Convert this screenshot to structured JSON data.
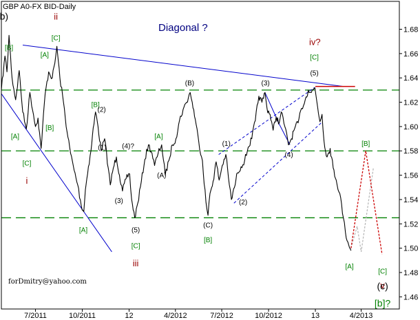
{
  "chart_data": {
    "type": "line",
    "title": "GBP A0-FX BID-Daily",
    "annotation_title": "Diagonal ?",
    "xlabel": "",
    "ylabel": "",
    "ylim": [
      1.45,
      1.695
    ],
    "x_start": "2011-04-25",
    "x_end": "2013-06-15",
    "x_ticks": [
      {
        "date": "2011-07-01",
        "label": "7/2011"
      },
      {
        "date": "2011-10-01",
        "label": "10/2011"
      },
      {
        "date": "2012-01-01",
        "label": "12"
      },
      {
        "date": "2012-04-01",
        "label": "4/2012"
      },
      {
        "date": "2012-07-01",
        "label": "7/2012"
      },
      {
        "date": "2012-10-01",
        "label": "10/2012"
      },
      {
        "date": "2013-01-01",
        "label": "13"
      },
      {
        "date": "2013-04-01",
        "label": "4/2013"
      }
    ],
    "y_ticks": [
      "1.46",
      "1.48",
      "1.50",
      "1.52",
      "1.54",
      "1.56",
      "1.58",
      "1.60",
      "1.62",
      "1.64",
      "1.66",
      "1.68"
    ],
    "grid": false,
    "colors": {
      "price": "#000000",
      "support": "#008000",
      "trend": "#0000cc",
      "resistance": "#cc0000",
      "channel": "#0000cc",
      "forecast_red": "#cc0000",
      "forecast_gray": "#b4b4b4",
      "label_green": "#008000",
      "label_red": "#990000",
      "label_black": "#000000",
      "label_blue": "#000080"
    },
    "series": [
      {
        "values": [
          [
            "2011-04-25",
            1.63
          ],
          [
            "2011-05-02",
            1.658
          ],
          [
            "2011-05-06",
            1.645
          ],
          [
            "2011-05-10",
            1.675
          ],
          [
            "2011-05-16",
            1.64
          ],
          [
            "2011-05-23",
            1.622
          ],
          [
            "2011-05-30",
            1.646
          ],
          [
            "2011-06-06",
            1.612
          ],
          [
            "2011-06-13",
            1.598
          ],
          [
            "2011-06-20",
            1.628
          ],
          [
            "2011-06-27",
            1.61
          ],
          [
            "2011-07-01",
            1.6
          ],
          [
            "2011-07-06",
            1.607
          ],
          [
            "2011-07-12",
            1.582
          ],
          [
            "2011-07-20",
            1.627
          ],
          [
            "2011-07-27",
            1.645
          ],
          [
            "2011-08-03",
            1.64
          ],
          [
            "2011-08-08",
            1.652
          ],
          [
            "2011-08-12",
            1.666
          ],
          [
            "2011-08-18",
            1.64
          ],
          [
            "2011-08-25",
            1.62
          ],
          [
            "2011-09-01",
            1.596
          ],
          [
            "2011-09-08",
            1.578
          ],
          [
            "2011-09-15",
            1.564
          ],
          [
            "2011-09-22",
            1.552
          ],
          [
            "2011-09-29",
            1.535
          ],
          [
            "2011-10-04",
            1.53
          ],
          [
            "2011-10-07",
            1.548
          ],
          [
            "2011-10-13",
            1.567
          ],
          [
            "2011-10-18",
            1.58
          ],
          [
            "2011-10-21",
            1.593
          ],
          [
            "2011-10-27",
            1.612
          ],
          [
            "2011-11-01",
            1.6
          ],
          [
            "2011-11-07",
            1.58
          ],
          [
            "2011-11-14",
            1.59
          ],
          [
            "2011-11-21",
            1.566
          ],
          [
            "2011-11-25",
            1.552
          ],
          [
            "2011-12-01",
            1.566
          ],
          [
            "2011-12-07",
            1.575
          ],
          [
            "2011-12-13",
            1.56
          ],
          [
            "2011-12-19",
            1.547
          ],
          [
            "2011-12-26",
            1.557
          ],
          [
            "2012-01-02",
            1.561
          ],
          [
            "2012-01-06",
            1.54
          ],
          [
            "2012-01-12",
            1.525
          ],
          [
            "2012-01-18",
            1.537
          ],
          [
            "2012-01-25",
            1.555
          ],
          [
            "2012-02-01",
            1.573
          ],
          [
            "2012-02-08",
            1.585
          ],
          [
            "2012-02-15",
            1.578
          ],
          [
            "2012-02-20",
            1.568
          ],
          [
            "2012-02-27",
            1.578
          ],
          [
            "2012-03-05",
            1.585
          ],
          [
            "2012-03-12",
            1.56
          ],
          [
            "2012-03-19",
            1.572
          ],
          [
            "2012-03-26",
            1.585
          ],
          [
            "2012-04-02",
            1.59
          ],
          [
            "2012-04-09",
            1.605
          ],
          [
            "2012-04-16",
            1.614
          ],
          [
            "2012-04-23",
            1.62
          ],
          [
            "2012-04-30",
            1.628
          ],
          [
            "2012-05-04",
            1.62
          ],
          [
            "2012-05-10",
            1.606
          ],
          [
            "2012-05-17",
            1.587
          ],
          [
            "2012-05-24",
            1.572
          ],
          [
            "2012-05-31",
            1.538
          ],
          [
            "2012-06-04",
            1.527
          ],
          [
            "2012-06-08",
            1.545
          ],
          [
            "2012-06-14",
            1.555
          ],
          [
            "2012-06-20",
            1.571
          ],
          [
            "2012-06-26",
            1.556
          ],
          [
            "2012-07-02",
            1.568
          ],
          [
            "2012-07-09",
            1.577
          ],
          [
            "2012-07-16",
            1.552
          ],
          [
            "2012-07-20",
            1.54
          ],
          [
            "2012-07-26",
            1.55
          ],
          [
            "2012-08-01",
            1.562
          ],
          [
            "2012-08-08",
            1.567
          ],
          [
            "2012-08-15",
            1.572
          ],
          [
            "2012-08-22",
            1.583
          ],
          [
            "2012-08-29",
            1.59
          ],
          [
            "2012-09-05",
            1.605
          ],
          [
            "2012-09-12",
            1.625
          ],
          [
            "2012-09-18",
            1.62
          ],
          [
            "2012-09-24",
            1.628
          ],
          [
            "2012-09-28",
            1.615
          ],
          [
            "2012-10-04",
            1.61
          ],
          [
            "2012-10-10",
            1.597
          ],
          [
            "2012-10-16",
            1.608
          ],
          [
            "2012-10-22",
            1.603
          ],
          [
            "2012-10-26",
            1.612
          ],
          [
            "2012-11-02",
            1.6
          ],
          [
            "2012-11-09",
            1.585
          ],
          [
            "2012-11-15",
            1.59
          ],
          [
            "2012-11-21",
            1.598
          ],
          [
            "2012-11-28",
            1.603
          ],
          [
            "2012-12-05",
            1.615
          ],
          [
            "2012-12-12",
            1.622
          ],
          [
            "2012-12-18",
            1.63
          ],
          [
            "2012-12-24",
            1.628
          ],
          [
            "2012-12-31",
            1.632
          ],
          [
            "2013-01-04",
            1.62
          ],
          [
            "2013-01-10",
            1.604
          ],
          [
            "2013-01-14",
            1.61
          ],
          [
            "2013-01-18",
            1.588
          ],
          [
            "2013-01-24",
            1.575
          ],
          [
            "2013-01-30",
            1.582
          ],
          [
            "2013-02-05",
            1.566
          ],
          [
            "2013-02-11",
            1.556
          ],
          [
            "2013-02-18",
            1.545
          ],
          [
            "2013-02-25",
            1.525
          ],
          [
            "2013-03-01",
            1.513
          ],
          [
            "2013-03-06",
            1.505
          ],
          [
            "2013-03-12",
            1.498
          ]
        ]
      }
    ],
    "horizontal_lines": [
      1.63,
      1.58,
      1.525
    ],
    "trend_line": [
      [
        "2011-06-06",
        1.667
      ],
      [
        "2013-02-25",
        1.633
      ]
    ],
    "resistance_line": [
      [
        "2013-01-01",
        1.633
      ],
      [
        "2013-03-20",
        1.633
      ]
    ],
    "lower_boundary_line": [
      [
        "2011-04-25",
        1.627
      ],
      [
        "2011-11-28",
        1.497
      ]
    ],
    "channel_upper": [
      [
        "2012-06-25",
        1.577
      ],
      [
        "2012-12-30",
        1.632
      ]
    ],
    "channel_lower": [
      [
        "2012-07-25",
        1.537
      ],
      [
        "2013-01-15",
        1.604
      ]
    ],
    "wave_connectors": [
      [
        [
          "2012-09-24",
          1.628
        ],
        [
          "2012-10-22",
          1.602
        ]
      ],
      [
        [
          "2012-10-22",
          1.602
        ],
        [
          "2012-11-12",
          1.585
        ]
      ]
    ],
    "forecast_red": [
      [
        "2013-03-12",
        1.5
      ],
      [
        "2013-04-10",
        1.58
      ],
      [
        "2013-05-12",
        1.495
      ]
    ],
    "forecast_gray": [
      [
        "2013-03-12",
        1.5
      ],
      [
        "2013-03-24",
        1.518
      ],
      [
        "2013-04-01",
        1.497
      ],
      [
        "2013-04-25",
        1.566
      ]
    ],
    "annotations": [
      {
        "text": "(b)",
        "date": "2011-04-27",
        "y": 1.688,
        "color": "label_black",
        "size": 14
      },
      {
        "text": "ii",
        "date": "2011-08-10",
        "y": 1.688,
        "color": "label_red",
        "size": 13
      },
      {
        "text": "[C]",
        "date": "2011-08-10",
        "y": 1.671,
        "color": "label_green",
        "size": 10
      },
      {
        "text": "[B]",
        "date": "2011-05-10",
        "y": 1.663,
        "color": "label_green",
        "size": 10
      },
      {
        "text": "[A]",
        "date": "2011-07-19",
        "y": 1.657,
        "color": "label_green",
        "size": 10
      },
      {
        "text": "[B]",
        "date": "2011-07-29",
        "y": 1.597,
        "color": "label_green",
        "size": 10
      },
      {
        "text": "[A]",
        "date": "2011-05-22",
        "y": 1.59,
        "color": "label_green",
        "size": 10
      },
      {
        "text": "[C]",
        "date": "2011-06-14",
        "y": 1.568,
        "color": "label_green",
        "size": 10
      },
      {
        "text": "i",
        "date": "2011-06-14",
        "y": 1.553,
        "color": "label_red",
        "size": 13
      },
      {
        "text": "[B]",
        "date": "2011-10-27",
        "y": 1.616,
        "color": "label_green",
        "size": 10
      },
      {
        "text": "(2)",
        "date": "2011-11-08",
        "y": 1.612,
        "color": "label_black",
        "size": 10
      },
      {
        "text": "(1)",
        "date": "2011-11-09",
        "y": 1.581,
        "color": "label_black",
        "size": 10
      },
      {
        "text": "(4)?",
        "date": "2011-12-30",
        "y": 1.582,
        "color": "label_black",
        "size": 10
      },
      {
        "text": "(3)",
        "date": "2011-12-12",
        "y": 1.537,
        "color": "label_black",
        "size": 10
      },
      {
        "text": "[A]",
        "date": "2011-10-03",
        "y": 1.513,
        "color": "label_green",
        "size": 10
      },
      {
        "text": "(5)",
        "date": "2012-01-14",
        "y": 1.513,
        "color": "label_black",
        "size": 10
      },
      {
        "text": "[C]",
        "date": "2012-01-14",
        "y": 1.5,
        "color": "label_green",
        "size": 10
      },
      {
        "text": "iii",
        "date": "2012-01-14",
        "y": 1.485,
        "color": "label_red",
        "size": 13
      },
      {
        "text": "[A]",
        "date": "2012-02-28",
        "y": 1.59,
        "color": "label_green",
        "size": 10
      },
      {
        "text": "(A)",
        "date": "2012-03-05",
        "y": 1.558,
        "color": "label_black",
        "size": 10
      },
      {
        "text": "(B)",
        "date": "2012-04-29",
        "y": 1.634,
        "color": "label_black",
        "size": 10
      },
      {
        "text": "(1)",
        "date": "2012-07-10",
        "y": 1.584,
        "color": "label_black",
        "size": 10
      },
      {
        "text": "(2)",
        "date": "2012-08-12",
        "y": 1.536,
        "color": "label_black",
        "size": 10
      },
      {
        "text": "(C)",
        "date": "2012-06-04",
        "y": 1.517,
        "color": "label_black",
        "size": 10
      },
      {
        "text": "[B]",
        "date": "2012-06-04",
        "y": 1.505,
        "color": "label_green",
        "size": 10
      },
      {
        "text": "(3)",
        "date": "2012-09-25",
        "y": 1.634,
        "color": "label_black",
        "size": 10
      },
      {
        "text": "(4)",
        "date": "2012-11-10",
        "y": 1.575,
        "color": "label_black",
        "size": 10
      },
      {
        "text": "(5)",
        "date": "2012-12-30",
        "y": 1.642,
        "color": "label_black",
        "size": 10
      },
      {
        "text": "[C]",
        "date": "2012-12-30",
        "y": 1.655,
        "color": "label_green",
        "size": 10
      },
      {
        "text": "iv?",
        "date": "2012-12-31",
        "y": 1.667,
        "color": "label_red",
        "size": 13
      },
      {
        "text": "[A]",
        "date": "2013-03-09",
        "y": 1.483,
        "color": "label_green",
        "size": 10
      },
      {
        "text": "[B]",
        "date": "2013-04-10",
        "y": 1.584,
        "color": "label_green",
        "size": 10
      },
      {
        "text": "[C]",
        "date": "2013-05-13",
        "y": 1.479,
        "color": "label_green",
        "size": 10
      },
      {
        "text": "v",
        "date": "2013-05-13",
        "y": 1.467,
        "color": "label_red",
        "size": 13
      },
      {
        "text": "(c)",
        "date": "2013-05-13",
        "y": 1.466,
        "color": "label_black",
        "size": 14
      },
      {
        "text": "[b]?",
        "date": "2013-05-13",
        "y": 1.452,
        "color": "label_green",
        "size": 14
      }
    ],
    "watermark": "forDmitry@yahoo.com"
  }
}
